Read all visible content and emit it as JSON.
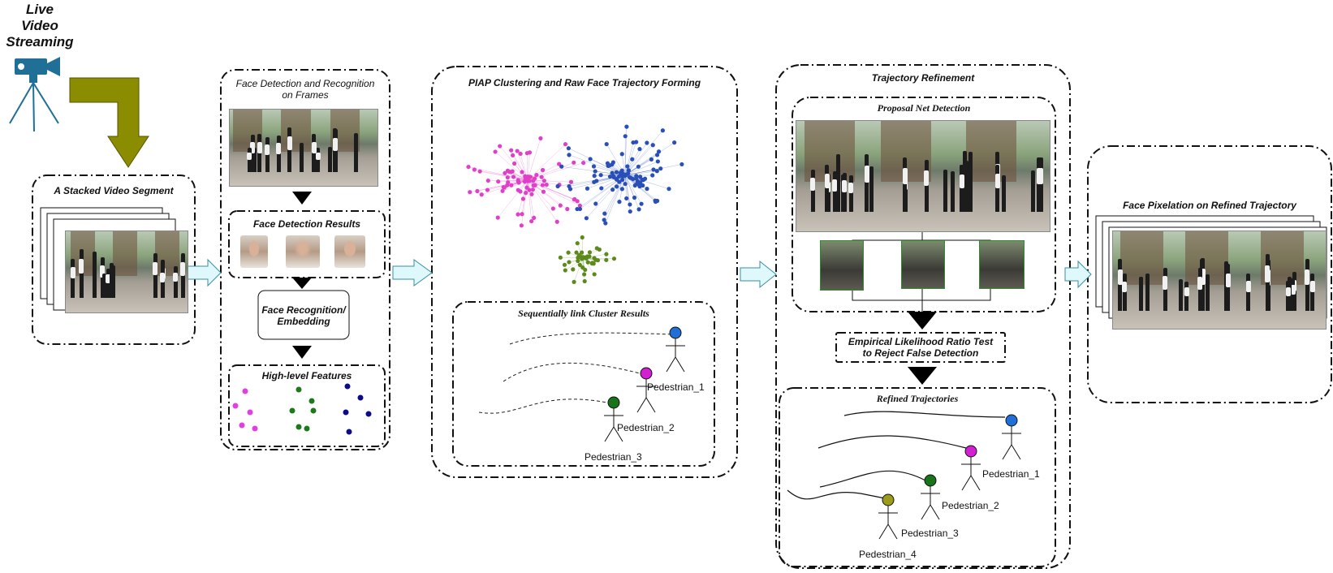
{
  "source": {
    "title_lines": [
      "Live",
      "Video",
      "Streaming"
    ]
  },
  "stage1": {
    "title": "A Stacked Video Segment"
  },
  "stage2": {
    "title_lines": [
      "Face Detection and Recognition",
      "on Frames"
    ],
    "detection_title": "Face Detection Results",
    "recognition_lines": [
      "Face Recognition/",
      "Embedding"
    ],
    "features_title": "High-level Features"
  },
  "stage3": {
    "title": "PIAP Clustering and Raw Face Trajectory Forming",
    "link_title": "Sequentially link Cluster Results",
    "pedestrians": [
      "Pedestrian_1",
      "Pedestrian_2",
      "Pedestrian_3"
    ]
  },
  "stage4": {
    "title": "Trajectory Refinement",
    "proposal_title": "Proposal Net Detection",
    "test_lines": [
      "Empirical Likelihood Ratio Test",
      "to Reject False Detection"
    ],
    "refined_title": "Refined Trajectories",
    "pedestrians": [
      "Pedestrian_1",
      "Pedestrian_2",
      "Pedestrian_3",
      "Pedestrian_4"
    ]
  },
  "stage5": {
    "title": "Face Pixelation on Refined Trajectory"
  },
  "colors": {
    "pink": "#e040c8",
    "blue": "#2a4fb8",
    "green": "#5c8a1c",
    "olive": "#8f8f00",
    "ped_blue": "#1f6fd6",
    "ped_magenta": "#d21fd2",
    "ped_green": "#197319",
    "ped_olive": "#9c9c1c",
    "arrow_fill": "#dff8fb"
  }
}
